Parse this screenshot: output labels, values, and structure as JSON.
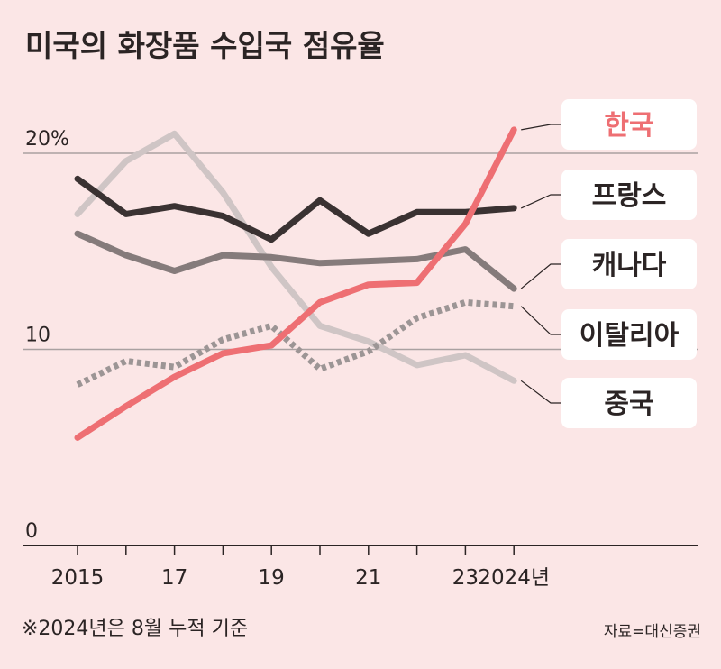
{
  "chart_data": {
    "type": "line",
    "title": "미국의 화장품 수입국 점유율",
    "x": [
      2015,
      2016,
      2017,
      2018,
      2019,
      2020,
      2021,
      2022,
      2023,
      2024
    ],
    "x_tick_labels": [
      {
        "x": 2015,
        "label": "2015"
      },
      {
        "x": 2017,
        "label": "17"
      },
      {
        "x": 2019,
        "label": "19"
      },
      {
        "x": 2021,
        "label": "21"
      },
      {
        "x": 2023,
        "label": "23"
      },
      {
        "x": 2024,
        "label": "2024년"
      }
    ],
    "y_tick_labels": [
      {
        "y": 0,
        "label": "0"
      },
      {
        "y": 10,
        "label": "10"
      },
      {
        "y": 20,
        "label": "20%"
      }
    ],
    "ylim": [
      0,
      21
    ],
    "grid": true,
    "legend": "right, labels connected to line ends",
    "series": [
      {
        "name": "한국",
        "color": "#ee6f73",
        "style": "solid",
        "values": [
          5.5,
          7.1,
          8.6,
          9.8,
          10.2,
          12.4,
          13.3,
          13.4,
          16.4,
          21.2
        ]
      },
      {
        "name": "프랑스",
        "color": "#3a3232",
        "style": "solid",
        "values": [
          18.7,
          16.9,
          17.3,
          16.8,
          15.6,
          17.6,
          15.9,
          17.0,
          17.0,
          17.2
        ]
      },
      {
        "name": "캐나다",
        "color": "#857b7b",
        "style": "solid",
        "values": [
          15.9,
          14.8,
          14.0,
          14.8,
          14.7,
          14.4,
          14.5,
          14.6,
          15.1,
          13.1
        ]
      },
      {
        "name": "이탈리아",
        "color": "#9c9595",
        "style": "dotted",
        "values": [
          8.2,
          9.4,
          9.1,
          10.5,
          11.2,
          9.0,
          9.9,
          11.6,
          12.4,
          12.2
        ]
      },
      {
        "name": "중국",
        "color": "#cfc5c5",
        "style": "solid",
        "values": [
          16.9,
          19.6,
          21.0,
          18.0,
          14.2,
          11.2,
          10.4,
          9.2,
          9.7,
          8.4
        ]
      }
    ],
    "annotations": {
      "note": "※2024년은 8월 누적 기준",
      "source": "자료=대신증권"
    }
  }
}
